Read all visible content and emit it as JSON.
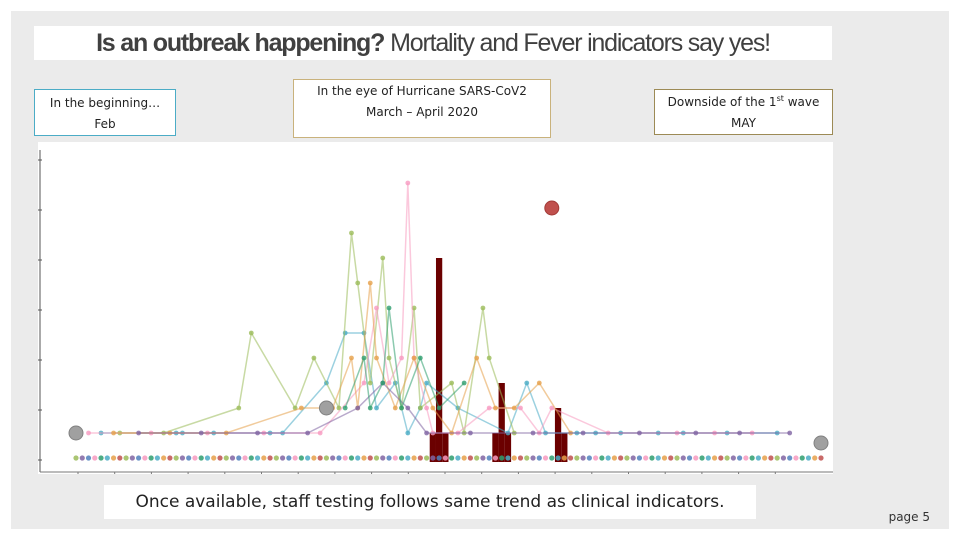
{
  "title": {
    "bold": "Is an outbreak happening?",
    "rest": "Mortality and Fever indicators say yes!"
  },
  "notes": {
    "feb": {
      "line1": "In the beginning…",
      "line2": "Feb"
    },
    "march": {
      "line1": "In the eye of Hurricane SARS-CoV2",
      "line2": "March – April 2020"
    },
    "may": {
      "line1_a": "Downside of the 1",
      "line1_sup": "st",
      "line1_b": " wave",
      "line2": "MAY"
    }
  },
  "caption": "Once available, staff testing follows same trend as clinical indicators.",
  "page_label": "page 5",
  "colors": {
    "bar": "#6b0000",
    "big_gray_marker": "#a0a0a0",
    "big_red_marker": "#c0504d",
    "series_palette": [
      "#4bacc6",
      "#9bbb59",
      "#f79ac0",
      "#e6a04a",
      "#8064a2",
      "#2e9e6e",
      "#c0504d",
      "#4f81bd"
    ]
  },
  "chart_data": {
    "type": "bar",
    "title": "",
    "xlabel": "",
    "ylabel": "",
    "ylim": [
      0,
      6
    ],
    "grid": false,
    "legend": "none",
    "x_count": 120,
    "bars": [
      {
        "x": 57,
        "value": 0.5
      },
      {
        "x": 58,
        "value": 4
      },
      {
        "x": 59,
        "value": 0.5
      },
      {
        "x": 67,
        "value": 0.5
      },
      {
        "x": 68,
        "value": 1.5
      },
      {
        "x": 69,
        "value": 0.5
      },
      {
        "x": 77,
        "value": 1
      },
      {
        "x": 78,
        "value": 0.5
      }
    ],
    "baseline_series": {
      "value": 0
    },
    "series": [
      {
        "color_index": 0,
        "points": [
          [
            4,
            0.5
          ],
          [
            16,
            0.5
          ],
          [
            17,
            0.5
          ],
          [
            22,
            0.5
          ],
          [
            31,
            0.5
          ],
          [
            33,
            0.5
          ],
          [
            40,
            1.5
          ],
          [
            43,
            2.5
          ],
          [
            46,
            2.5
          ],
          [
            48,
            1
          ],
          [
            51,
            1.5
          ],
          [
            53,
            0.5
          ],
          [
            55,
            1
          ],
          [
            56,
            1.5
          ],
          [
            61,
            1
          ],
          [
            69,
            0.5
          ],
          [
            72,
            1.5
          ],
          [
            75,
            0.5
          ],
          [
            80,
            0.5
          ],
          [
            83,
            0.5
          ],
          [
            87,
            0.5
          ],
          [
            93,
            0.5
          ],
          [
            97,
            0.5
          ],
          [
            104,
            0.5
          ],
          [
            112,
            0.5
          ]
        ]
      },
      {
        "color_index": 1,
        "points": [
          [
            7,
            0.5
          ],
          [
            14,
            0.5
          ],
          [
            26,
            1
          ],
          [
            28,
            2.5
          ],
          [
            35,
            1
          ],
          [
            38,
            2
          ],
          [
            42,
            1
          ],
          [
            44,
            4.5
          ],
          [
            45,
            3.5
          ],
          [
            47,
            1.5
          ],
          [
            49,
            4
          ],
          [
            50,
            2
          ],
          [
            52,
            1
          ],
          [
            54,
            3
          ],
          [
            55,
            1
          ],
          [
            60,
            1.5
          ],
          [
            62,
            0.5
          ],
          [
            65,
            3
          ],
          [
            66,
            2
          ],
          [
            70,
            0.5
          ]
        ]
      },
      {
        "color_index": 2,
        "points": [
          [
            2,
            0.5
          ],
          [
            12,
            0.5
          ],
          [
            21,
            0.5
          ],
          [
            30,
            0.5
          ],
          [
            39,
            0.5
          ],
          [
            46,
            1.5
          ],
          [
            48,
            3
          ],
          [
            50,
            1.5
          ],
          [
            52,
            2
          ],
          [
            53,
            5.5
          ],
          [
            54,
            2
          ],
          [
            56,
            1
          ],
          [
            57,
            0.5
          ],
          [
            61,
            0.5
          ],
          [
            66,
            1
          ],
          [
            71,
            1
          ],
          [
            74,
            0.5
          ],
          [
            76,
            1
          ],
          [
            85,
            0.5
          ],
          [
            96,
            0.5
          ],
          [
            102,
            0.5
          ],
          [
            108,
            0.5
          ]
        ]
      },
      {
        "color_index": 3,
        "points": [
          [
            6,
            0.5
          ],
          [
            15,
            0.5
          ],
          [
            24,
            0.5
          ],
          [
            36,
            1
          ],
          [
            41,
            1
          ],
          [
            44,
            2
          ],
          [
            45,
            1
          ],
          [
            47,
            3.5
          ],
          [
            48,
            2
          ],
          [
            51,
            1
          ],
          [
            54,
            2
          ],
          [
            57,
            1
          ],
          [
            60,
            0.5
          ],
          [
            64,
            2
          ],
          [
            67,
            1
          ],
          [
            70,
            1
          ],
          [
            74,
            1.5
          ],
          [
            79,
            0.5
          ]
        ]
      },
      {
        "color_index": 4,
        "points": [
          [
            10,
            0.5
          ],
          [
            20,
            0.5
          ],
          [
            29,
            0.5
          ],
          [
            37,
            0.5
          ],
          [
            45,
            1
          ],
          [
            49,
            1.5
          ],
          [
            53,
            1
          ],
          [
            56,
            0.5
          ],
          [
            63,
            0.5
          ],
          [
            73,
            0.5
          ],
          [
            81,
            0.5
          ],
          [
            90,
            0.5
          ],
          [
            99,
            0.5
          ],
          [
            106,
            0.5
          ],
          [
            114,
            0.5
          ]
        ]
      },
      {
        "color_index": 5,
        "points": [
          [
            43,
            1
          ],
          [
            46,
            2
          ],
          [
            47,
            1
          ],
          [
            49,
            1.5
          ],
          [
            50,
            3
          ],
          [
            52,
            1
          ],
          [
            55,
            2
          ],
          [
            58,
            1
          ],
          [
            62,
            1.5
          ]
        ]
      }
    ],
    "markers": [
      {
        "x": 0,
        "value": 0.5,
        "kind": "big_gray"
      },
      {
        "x": 40,
        "value": 1,
        "kind": "big_gray"
      },
      {
        "x": 76,
        "value": 5,
        "kind": "big_red"
      },
      {
        "x": 119,
        "value": 0.3,
        "kind": "big_gray"
      }
    ]
  }
}
